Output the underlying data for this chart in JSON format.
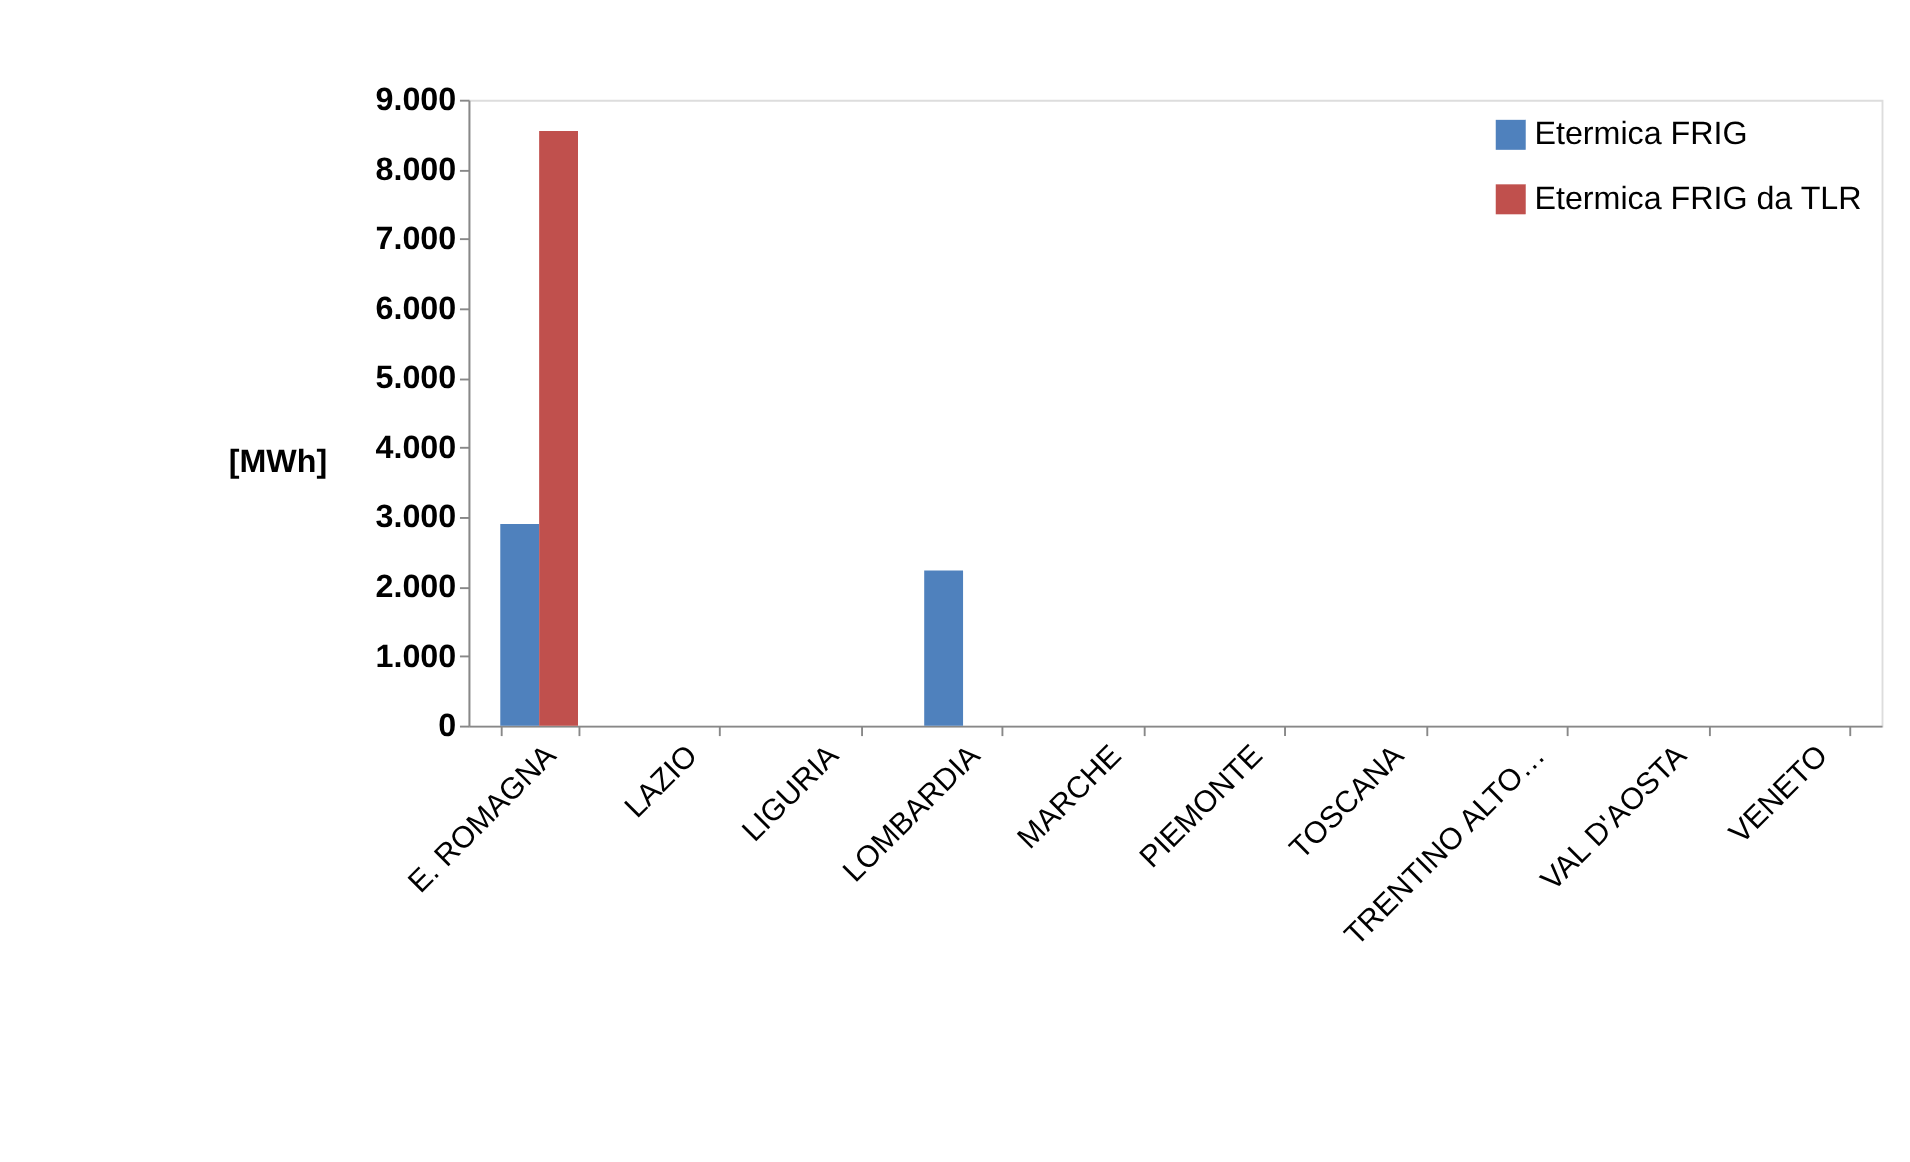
{
  "chart_data": {
    "type": "bar",
    "ylabel": "[MWh]",
    "categories": [
      "E. ROMAGNA",
      "LAZIO",
      "LIGURIA",
      "LOMBARDIA",
      "MARCHE",
      "PIEMONTE",
      "TOSCANA",
      "TRENTINO ALTO…",
      "VAL D'AOSTA",
      "VENETO"
    ],
    "series": [
      {
        "name": "Etermica FRIG",
        "color": "#4f81bd",
        "values": [
          2900,
          0,
          0,
          2230,
          0,
          0,
          0,
          0,
          0,
          0
        ]
      },
      {
        "name": "Etermica FRIG da TLR",
        "color": "#c0504d",
        "values": [
          8550,
          0,
          0,
          0,
          0,
          0,
          0,
          0,
          0,
          0
        ]
      }
    ],
    "ylim": [
      0,
      9000
    ],
    "yticks": [
      {
        "value": 0,
        "label": "0"
      },
      {
        "value": 1000,
        "label": "1.000"
      },
      {
        "value": 2000,
        "label": "2.000"
      },
      {
        "value": 3000,
        "label": "3.000"
      },
      {
        "value": 4000,
        "label": "4.000"
      },
      {
        "value": 5000,
        "label": "5.000"
      },
      {
        "value": 6000,
        "label": "6.000"
      },
      {
        "value": 7000,
        "label": "7.000"
      },
      {
        "value": 8000,
        "label": "8.000"
      },
      {
        "value": 9000,
        "label": "9.000"
      }
    ],
    "grid": false,
    "legend": "top right"
  }
}
